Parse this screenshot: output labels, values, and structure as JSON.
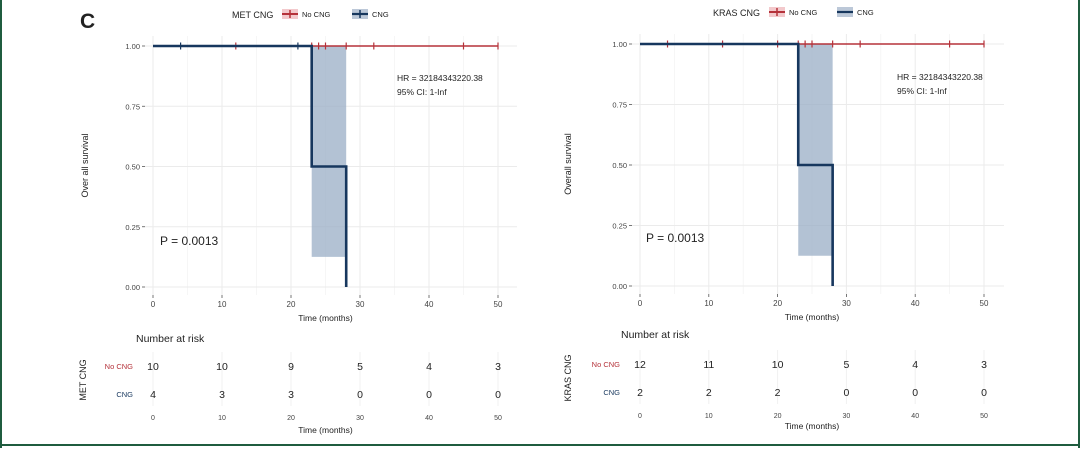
{
  "panel_label": "C",
  "chart_data": [
    {
      "type": "line",
      "subtype": "kaplan-meier",
      "legend_title": "MET CNG",
      "legend_position": "top",
      "xlabel": "Time (months)",
      "ylabel": "Over all survival",
      "xlim": [
        0,
        50
      ],
      "ylim": [
        0,
        1
      ],
      "x_ticks": [
        0,
        10,
        20,
        30,
        40,
        50
      ],
      "y_ticks": [
        0.0,
        0.25,
        0.5,
        0.75,
        1.0
      ],
      "y_tick_labels": [
        "0.00",
        "0.25",
        "0.50",
        "0.75",
        "1.00"
      ],
      "grid": true,
      "colors": {
        "No CNG": "#b5323a",
        "CNG": "#17375e",
        "ci_fill": "#9aaec6"
      },
      "series": [
        {
          "name": "No CNG",
          "x": [
            0,
            50
          ],
          "y": [
            1.0,
            1.0
          ],
          "censor_x": [
            12,
            23,
            24,
            25,
            28,
            32,
            45,
            50
          ]
        },
        {
          "name": "CNG",
          "x": [
            0,
            23,
            23,
            28,
            28
          ],
          "y": [
            1.0,
            1.0,
            0.5,
            0.5,
            0.0
          ],
          "censor_x": [
            4,
            21
          ]
        }
      ],
      "ci_band": {
        "x": [
          23,
          28
        ],
        "lower": 0.125,
        "upper": 1.0
      },
      "annotations": [
        "HR = 32184343220.38",
        "95% CI: 1-Inf",
        "P = 0.0013"
      ],
      "risk_table": {
        "title": "Number at risk",
        "strata_title": "MET CNG",
        "time_points": [
          0,
          10,
          20,
          30,
          40,
          50
        ],
        "tick_labels": [
          "0",
          "10",
          "20",
          "30",
          "40",
          "50"
        ],
        "xlabel": "Time (months)",
        "rows": [
          {
            "name": "No CNG",
            "counts": [
              10,
              10,
              9,
              5,
              4,
              3
            ]
          },
          {
            "name": "CNG",
            "counts": [
              4,
              3,
              3,
              0,
              0,
              0
            ]
          }
        ]
      }
    },
    {
      "type": "line",
      "subtype": "kaplan-meier",
      "legend_title": "KRAS CNG",
      "legend_position": "top",
      "xlabel": "Time (months)",
      "ylabel": "Overall survival",
      "xlim": [
        0,
        50
      ],
      "ylim": [
        0,
        1
      ],
      "x_ticks": [
        0,
        10,
        20,
        30,
        40,
        50
      ],
      "y_ticks": [
        0.0,
        0.25,
        0.5,
        0.75,
        1.0
      ],
      "y_tick_labels": [
        "0.00",
        "0.25",
        "0.50",
        "0.75",
        "1.00"
      ],
      "grid": true,
      "colors": {
        "No CNG": "#b5323a",
        "CNG": "#17375e",
        "ci_fill": "#9aaec6"
      },
      "series": [
        {
          "name": "No CNG",
          "x": [
            0,
            50
          ],
          "y": [
            1.0,
            1.0
          ],
          "censor_x": [
            4,
            12,
            20,
            23,
            24,
            25,
            28,
            32,
            45,
            50
          ]
        },
        {
          "name": "CNG",
          "x": [
            0,
            23,
            23,
            28,
            28
          ],
          "y": [
            1.0,
            1.0,
            0.5,
            0.5,
            0.0
          ],
          "censor_x": []
        }
      ],
      "ci_band": {
        "x": [
          23,
          28
        ],
        "lower": 0.125,
        "upper": 1.0
      },
      "annotations": [
        "HR = 32184343220.38",
        "95% CI: 1-Inf",
        "P = 0.0013"
      ],
      "risk_table": {
        "title": "Number at risk",
        "strata_title": "KRAS CNG",
        "time_points": [
          0,
          10,
          20,
          30,
          40,
          50
        ],
        "tick_labels": [
          "0",
          "10",
          "20",
          "30",
          "40",
          "50"
        ],
        "xlabel": "Time (months)",
        "rows": [
          {
            "name": "No CNG",
            "counts": [
              12,
              11,
              10,
              5,
              4,
              3
            ]
          },
          {
            "name": "CNG",
            "counts": [
              2,
              2,
              2,
              0,
              0,
              0
            ]
          }
        ]
      }
    }
  ]
}
